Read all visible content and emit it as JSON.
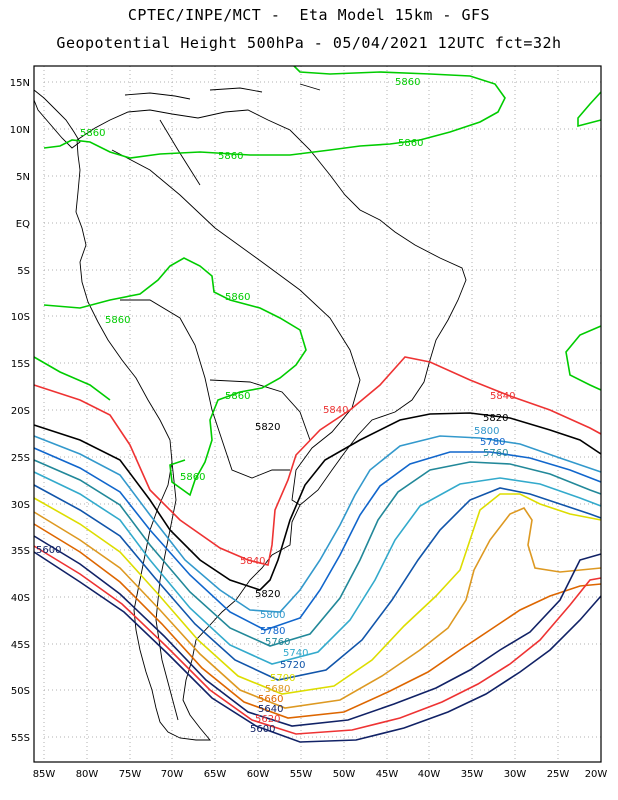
{
  "title_line1": "CPTEC/INPE/MCT -  Eta Model 15km - GFS",
  "title_line2": "Geopotential Height 500hPa - 05/04/2021 12UTC fct=32h",
  "lat_labels": [
    "15N",
    "10N",
    "5N",
    "EQ",
    "5S",
    "10S",
    "15S",
    "20S",
    "25S",
    "30S",
    "35S",
    "40S",
    "45S",
    "50S",
    "55S"
  ],
  "lon_labels": [
    "85W",
    "80W",
    "75W",
    "70W",
    "65W",
    "60W",
    "55W",
    "50W",
    "45W",
    "40W",
    "35W",
    "30W",
    "25W",
    "20W"
  ],
  "contours": [
    {
      "value": "5860",
      "color": "#00cc00"
    },
    {
      "value": "5840",
      "color": "#ee3333"
    },
    {
      "value": "5820",
      "color": "#000000"
    },
    {
      "value": "5800",
      "color": "#3399cc"
    },
    {
      "value": "5780",
      "color": "#1166cc"
    },
    {
      "value": "5760",
      "color": "#228899"
    },
    {
      "value": "5740",
      "color": "#33aacc"
    },
    {
      "value": "5720",
      "color": "#1155aa"
    },
    {
      "value": "5700",
      "color": "#dddd00"
    },
    {
      "value": "5680",
      "color": "#dd9922"
    },
    {
      "value": "5660",
      "color": "#dd6600"
    },
    {
      "value": "5640",
      "color": "#112266"
    },
    {
      "value": "5620",
      "color": "#ee3333"
    },
    {
      "value": "5600",
      "color": "#112266"
    }
  ],
  "contour_labels": [
    {
      "text": "5860",
      "color": "#00cc00"
    },
    {
      "text": "5860",
      "color": "#00cc00"
    },
    {
      "text": "5860",
      "color": "#00cc00"
    },
    {
      "text": "5860",
      "color": "#00cc00"
    },
    {
      "text": "5860",
      "color": "#00cc00"
    },
    {
      "text": "5860",
      "color": "#00cc00"
    },
    {
      "text": "5860",
      "color": "#00cc00"
    },
    {
      "text": "5860",
      "color": "#00cc00"
    },
    {
      "text": "5840",
      "color": "#ee3333"
    },
    {
      "text": "5840",
      "color": "#ee3333"
    },
    {
      "text": "5840",
      "color": "#ee3333"
    },
    {
      "text": "5820",
      "color": "#000000"
    },
    {
      "text": "5820",
      "color": "#000000"
    },
    {
      "text": "5820",
      "color": "#000000"
    },
    {
      "text": "5800",
      "color": "#3399cc"
    },
    {
      "text": "5780",
      "color": "#1166cc"
    },
    {
      "text": "5760",
      "color": "#228899"
    },
    {
      "text": "5800",
      "color": "#3399cc"
    },
    {
      "text": "5780",
      "color": "#1166cc"
    },
    {
      "text": "5760",
      "color": "#228899"
    },
    {
      "text": "5740",
      "color": "#33aacc"
    },
    {
      "text": "5720",
      "color": "#1155aa"
    },
    {
      "text": "5700",
      "color": "#dddd00"
    },
    {
      "text": "5680",
      "color": "#dd9922"
    },
    {
      "text": "5660",
      "color": "#dd6600"
    },
    {
      "text": "5640",
      "color": "#112266"
    },
    {
      "text": "5620",
      "color": "#ee3333"
    },
    {
      "text": "5600",
      "color": "#112266"
    },
    {
      "text": "5600",
      "color": "#112266"
    }
  ]
}
